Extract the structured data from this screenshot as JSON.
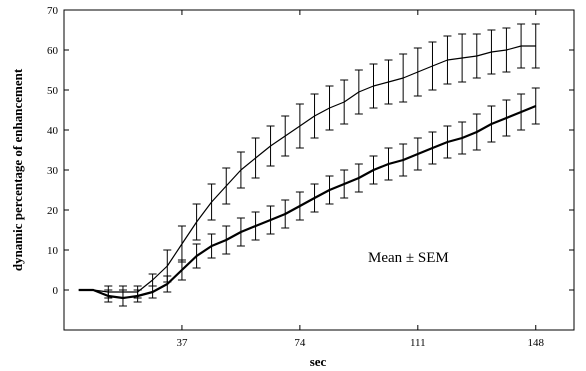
{
  "chart_data": {
    "type": "line",
    "xlabel": "sec",
    "ylabel": "dynamic percentage of enhancement",
    "annotation": "Mean ± SEM",
    "x": [
      4.6,
      9.2,
      13.9,
      18.5,
      23.1,
      27.8,
      32.4,
      37.0,
      41.6,
      46.3,
      50.9,
      55.5,
      60.1,
      64.8,
      69.4,
      74.0,
      78.6,
      83.3,
      87.9,
      92.5,
      97.1,
      101.8,
      106.4,
      111.0,
      115.6,
      120.3,
      124.9,
      129.5,
      134.1,
      138.8,
      143.4,
      148.0
    ],
    "xticks": [
      37,
      74,
      111,
      148
    ],
    "yticks": [
      0,
      10,
      20,
      30,
      40,
      50,
      60,
      70
    ],
    "xlim": [
      0,
      160
    ],
    "ylim": [
      -10,
      70
    ],
    "grid": false,
    "series": [
      {
        "x": [
          4.6,
          9.2,
          13.9,
          18.5,
          23.1,
          27.8,
          32.4,
          37.0,
          41.6,
          46.3,
          50.9,
          55.5,
          60.1,
          64.8,
          69.4,
          74.0,
          78.6,
          83.3,
          87.9,
          92.5,
          97.1,
          101.8,
          106.4,
          111.0,
          115.6,
          120.3,
          124.9,
          129.5,
          134.1,
          138.8,
          143.4,
          148.0
        ],
        "values": [
          0,
          0,
          -0.5,
          -0.5,
          -0.5,
          2.5,
          6,
          11.5,
          17,
          22,
          26,
          30,
          33,
          36,
          38.5,
          41,
          43.5,
          45.5,
          47,
          49.5,
          51,
          52,
          53,
          54.5,
          56,
          57.5,
          58,
          58.5,
          59.5,
          60,
          61,
          61
        ],
        "errors": [
          0,
          0,
          1.5,
          1.5,
          1.5,
          1.5,
          4,
          4.5,
          4.5,
          4.5,
          4.5,
          4.5,
          5,
          5,
          5,
          5.5,
          5.5,
          5.5,
          5.5,
          5.5,
          5.5,
          5.5,
          6,
          6,
          6,
          6,
          6,
          5.5,
          5.5,
          5.5,
          5.5,
          5.5
        ],
        "error_bars_at": [
          13.9,
          18.5,
          23.1,
          27.8,
          32.4,
          37.0,
          41.6,
          46.3,
          50.9,
          55.5,
          60.1,
          64.8,
          69.4,
          74.0,
          78.6,
          83.3,
          87.9,
          92.5,
          97.1,
          101.8,
          106.4,
          111.0,
          115.6,
          120.3,
          124.9,
          129.5,
          134.1,
          138.8,
          143.4,
          148.0
        ],
        "color": "#000000",
        "stroke": 1.2
      },
      {
        "x": [
          4.6,
          9.2,
          13.9,
          18.5,
          23.1,
          27.8,
          32.4,
          37.0,
          41.6,
          46.3,
          50.9,
          55.5,
          60.1,
          64.8,
          69.4,
          74.0,
          78.6,
          83.3,
          87.9,
          92.5,
          97.1,
          101.8,
          106.4,
          111.0,
          115.6,
          120.3,
          124.9,
          129.5,
          134.1,
          138.8,
          143.4,
          148.0
        ],
        "values": [
          0,
          0,
          -1.5,
          -2,
          -1.5,
          -0.5,
          1.5,
          5,
          8.5,
          11,
          12.5,
          14.5,
          16,
          17.5,
          19,
          21,
          23,
          25,
          26.5,
          28,
          30,
          31.5,
          32.5,
          34,
          35.5,
          37,
          38,
          39.5,
          41.5,
          43,
          44.5,
          46
        ],
        "errors": [
          0,
          0,
          1.5,
          2,
          1.5,
          1.5,
          2,
          2.5,
          3,
          3,
          3.5,
          3.5,
          3.5,
          3.5,
          3.5,
          3.5,
          3.5,
          3.5,
          3.5,
          3.5,
          3.5,
          4,
          4,
          4,
          4,
          4,
          4,
          4.5,
          4.5,
          4.5,
          4.5,
          4.5
        ],
        "error_bars_at": [
          13.9,
          18.5,
          23.1,
          27.8,
          32.4,
          37.0,
          41.6,
          46.3,
          50.9,
          55.5,
          60.1,
          64.8,
          69.4,
          74.0,
          78.6,
          83.3,
          87.9,
          92.5,
          97.1,
          101.8,
          106.4,
          111.0,
          115.6,
          120.3,
          124.9,
          129.5,
          134.1,
          138.8,
          143.4,
          148.0
        ],
        "color": "#000000",
        "stroke": 2.2
      }
    ]
  }
}
